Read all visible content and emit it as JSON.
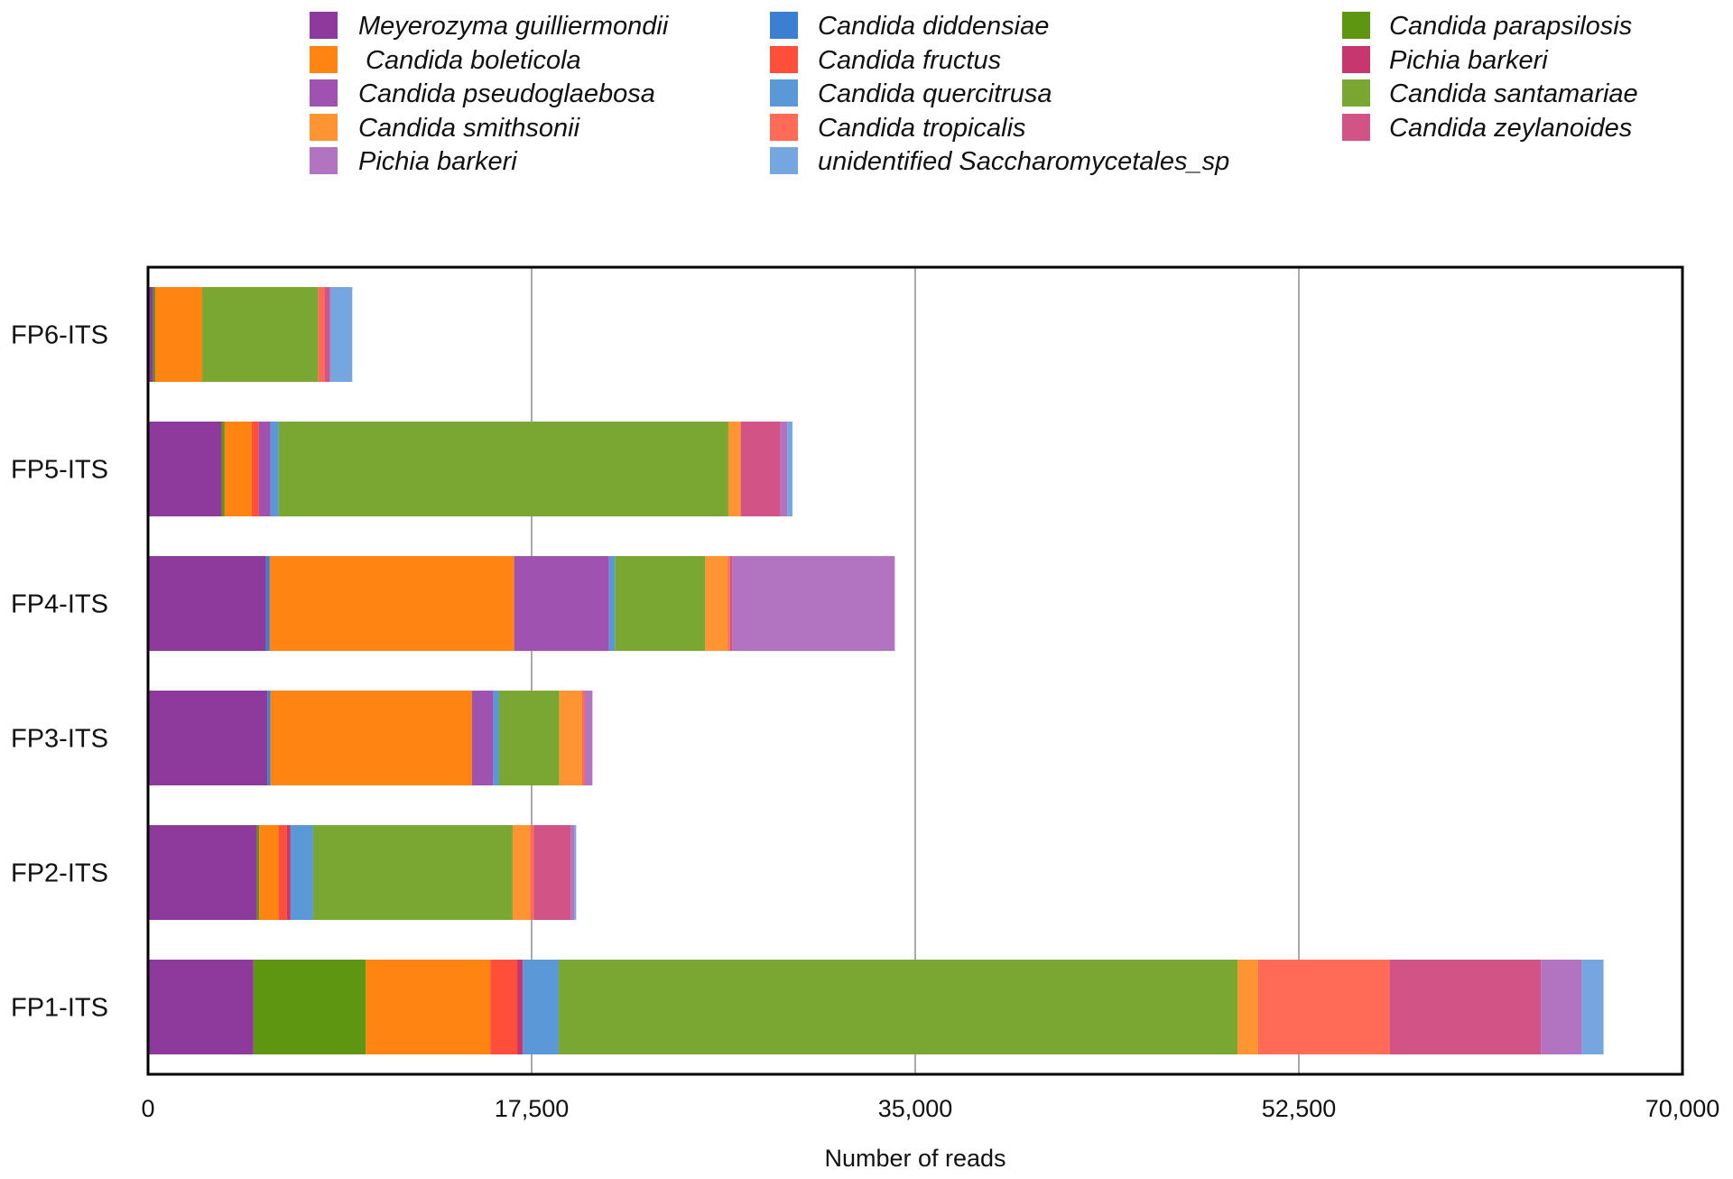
{
  "chart_data": {
    "type": "bar",
    "orientation": "horizontal",
    "stacked": true,
    "title": "",
    "xlabel": "Number of reads",
    "ylabel": "",
    "xlim": [
      0,
      70000
    ],
    "xticks": [
      0,
      17500,
      35000,
      52500,
      70000
    ],
    "xtick_labels": [
      "0",
      "17,500",
      "35,000",
      "52,500",
      "70,000"
    ],
    "grid": "vertical",
    "legend_position": "top",
    "categories": [
      "FP6-ITS",
      "FP5-ITS",
      "FP4-ITS",
      "FP3-ITS",
      "FP2-ITS",
      "FP1-ITS"
    ],
    "series": [
      {
        "name": "Meyerozyma guilliermondii",
        "color": "#8e3a9c",
        "values": [
          231,
          3360,
          5378,
          5448,
          4966,
          4811
        ]
      },
      {
        "name": "Candida diddensiae",
        "color": "#3a7fd0",
        "values": [
          0,
          0,
          177,
          136,
          0,
          0
        ]
      },
      {
        "name": "Candida parapsilosis",
        "color": "#5e9612",
        "values": [
          100,
          136,
          0,
          0,
          111,
          5124
        ]
      },
      {
        "name": " Candida boleticola",
        "color": "#ff8411",
        "values": [
          2141,
          1235,
          11147,
          9196,
          877,
          5678
        ]
      },
      {
        "name": "Candida fructus",
        "color": "#ff4f3a",
        "values": [
          0,
          329,
          0,
          0,
          383,
          1230
        ]
      },
      {
        "name": "Pichia barkeri",
        "color": "#c8366e",
        "values": [
          0,
          0,
          0,
          0,
          165,
          252
        ]
      },
      {
        "name": "Candida pseudoglaebosa",
        "color": "#a052b0",
        "values": [
          0,
          523,
          4324,
          964,
          0,
          0
        ]
      },
      {
        "name": "Candida quercitrusa",
        "color": "#5b98d8",
        "values": [
          0,
          383,
          276,
          272,
          1030,
          1639
        ]
      },
      {
        "name": "Candida santamariae",
        "color": "#7aa732",
        "values": [
          5282,
          20508,
          4118,
          2747,
          9101,
          30969
        ]
      },
      {
        "name": "Candida smithsonii",
        "color": "#ff9433",
        "values": [
          0,
          564,
          1030,
          1030,
          799,
          938
        ]
      },
      {
        "name": "Candida tropicalis",
        "color": "#ff6b57",
        "values": [
          300,
          0,
          103,
          136,
          165,
          6001
        ]
      },
      {
        "name": "Candida zeylanoides",
        "color": "#d25486",
        "values": [
          247,
          1812,
          103,
          0,
          1688,
          6899
        ]
      },
      {
        "name": "Pichia barkeri",
        "color": "#b273c0",
        "values": [
          0,
          317,
          7412,
          346,
          165,
          1876
        ]
      },
      {
        "name": "unidentified Saccharomycetales_sp",
        "color": "#75a6e0",
        "values": [
          1017,
          231,
          0,
          0,
          82,
          983
        ]
      }
    ]
  }
}
